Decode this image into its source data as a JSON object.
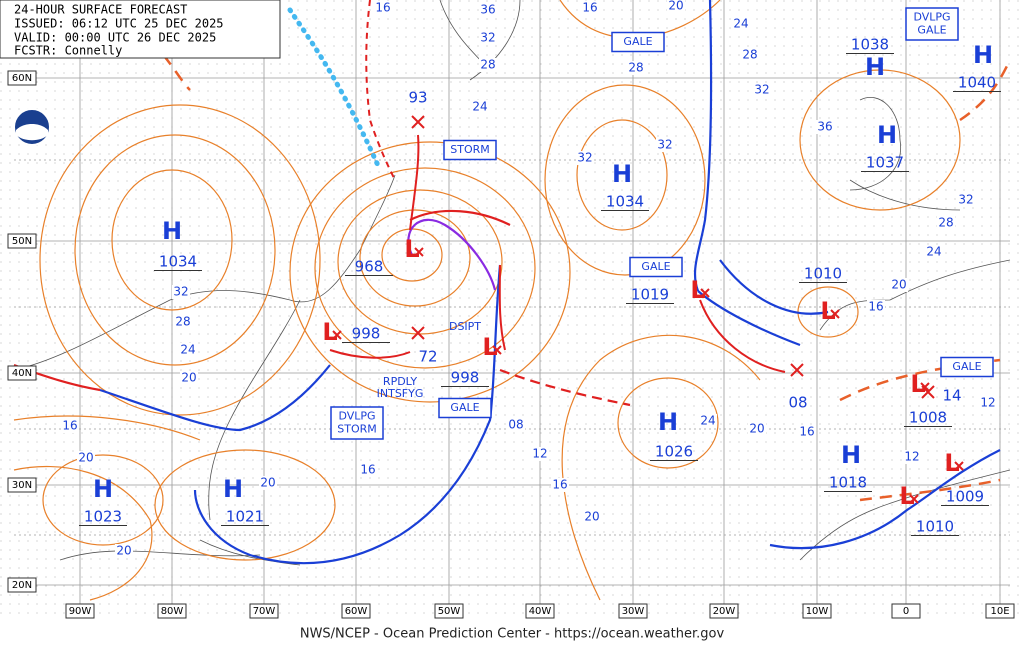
{
  "header": {
    "title": "24-HOUR SURFACE FORECAST",
    "issued": "ISSUED: 06:12 UTC 25 DEC 2025",
    "valid": "VALID:  00:00 UTC 26 DEC 2025",
    "forecaster": "FCSTR:  Connelly"
  },
  "footer": "NWS/NCEP - Ocean Prediction Center - https://ocean.weather.gov",
  "latitude_labels": [
    "60N",
    "50N",
    "40N",
    "30N",
    "20N"
  ],
  "longitude_labels": [
    "90W",
    "80W",
    "70W",
    "60W",
    "50W",
    "40W",
    "30W",
    "20W",
    "10W",
    "0",
    "10E"
  ],
  "systems": [
    {
      "symbol": "H",
      "pressure": "1034"
    },
    {
      "symbol": "H",
      "pressure": "1023"
    },
    {
      "symbol": "H",
      "pressure": "1021"
    },
    {
      "symbol": "L",
      "pressure": "968"
    },
    {
      "symbol": "L",
      "pressure": "998"
    },
    {
      "symbol": "L",
      "pressure": "998"
    },
    {
      "symbol": "H",
      "pressure": "1034"
    },
    {
      "symbol": "L",
      "pressure": "1019"
    },
    {
      "symbol": "H",
      "pressure": "1026"
    },
    {
      "symbol": "H",
      "pressure": "1038"
    },
    {
      "symbol": "H",
      "pressure": "1040"
    },
    {
      "symbol": "H",
      "pressure": "1037"
    },
    {
      "symbol": "L",
      "pressure": "1010"
    },
    {
      "symbol": "L",
      "pressure": "1008"
    },
    {
      "symbol": "H",
      "pressure": "1018"
    },
    {
      "symbol": "L",
      "pressure": "1009"
    },
    {
      "symbol": "L",
      "pressure": "1010"
    }
  ],
  "boxed_labels": [
    [
      "STORM"
    ],
    [
      "GALE"
    ],
    [
      "DVLPG",
      "GALE"
    ],
    [
      "GALE"
    ],
    [
      "GALE"
    ],
    [
      "DVLPG",
      "STORM"
    ],
    [
      "GALE"
    ]
  ],
  "annotations": [
    [
      "DSIPT"
    ],
    [
      "RPDLY",
      "INTSFYG"
    ]
  ],
  "track_labels": [
    "93",
    "72",
    "08",
    "14"
  ],
  "isobar_labels": [
    "16",
    "36",
    "32",
    "28",
    "16",
    "20",
    "24",
    "28",
    "32",
    "28",
    "24",
    "32",
    "32",
    "36",
    "32",
    "28",
    "24",
    "20",
    "16",
    "12",
    "32",
    "28",
    "24",
    "20",
    "16",
    "20",
    "20",
    "20",
    "16",
    "08",
    "12",
    "16",
    "20",
    "24",
    "20",
    "16",
    "12"
  ]
}
